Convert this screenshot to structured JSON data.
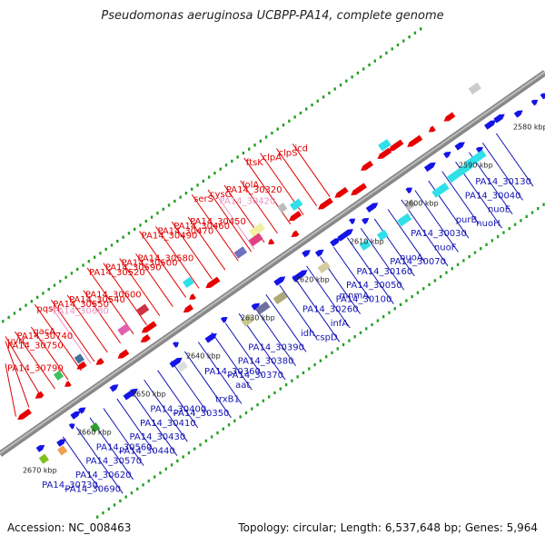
{
  "title": "Pseudomonas aeruginosa UCBPP-PA14, complete genome",
  "footer": {
    "accession": "Accession: NC_008463",
    "summary": "Topology: circular; Length: 6,537,648 bp; Genes: 5,964"
  },
  "colors": {
    "forward": "#1414e6",
    "reverse": "#e60000",
    "pseudo": "#f0a0d0",
    "cyan": "#30e0e8",
    "backbone": "#888888",
    "tick": "#22a022"
  },
  "kbp_ticks": [
    {
      "label": "2580 kbp",
      "s": 0.04
    },
    {
      "label": "2590 kbp",
      "s": 0.14
    },
    {
      "label": "2600 kbp",
      "s": 0.24
    },
    {
      "label": "2610 kbp",
      "s": 0.34
    },
    {
      "label": "2620 kbp",
      "s": 0.44
    },
    {
      "label": "2630 kbp",
      "s": 0.54
    },
    {
      "label": "2640 kbp",
      "s": 0.64
    },
    {
      "label": "2650 kbp",
      "s": 0.74
    },
    {
      "label": "2660 kbp",
      "s": 0.84
    },
    {
      "label": "2670 kbp",
      "s": 0.94
    }
  ],
  "labels_forward": [
    "PA14_30130",
    "PA14_30040",
    "nuoE",
    "nuoH",
    "purB",
    "PA14_30030",
    "nuoF",
    "PA14_30070",
    "nuoA",
    "PA14_30160",
    "PA14_30050",
    "PA14_30100",
    "mnmA",
    "PA14_30260",
    "infA",
    "cspD",
    "idh",
    "PA14_30390",
    "PA14_30380",
    "PA14_30370",
    "PA14_30360",
    "aat",
    "trxB1",
    "PA14_30350",
    "PA14_30400",
    "PA14_30410",
    "PA14_30430",
    "PA14_30440",
    "PA14_30560",
    "PA14_30570",
    "PA14_30620",
    "PA14_30690",
    "PA14_30730"
  ],
  "labels_reverse": [
    "icd",
    "clpS",
    "clpA",
    "ftsK",
    "lolA",
    "PA14_30320",
    "cysG",
    "serS",
    "PA14_30450",
    "PA14_30460",
    "PA14_30470",
    "PA14_30490",
    "PA14_30580",
    "PA14_30500",
    "PA14_30590",
    "PA14_30520",
    "PA14_30600",
    "PA14_30540",
    "PA14_30550",
    "pqsH",
    "gacA",
    "PA14_30740",
    "uvrC",
    "PA14_30750",
    "PA14_30790"
  ],
  "labels_pseudo": [
    "PA14_30420",
    "PA14_30680"
  ]
}
